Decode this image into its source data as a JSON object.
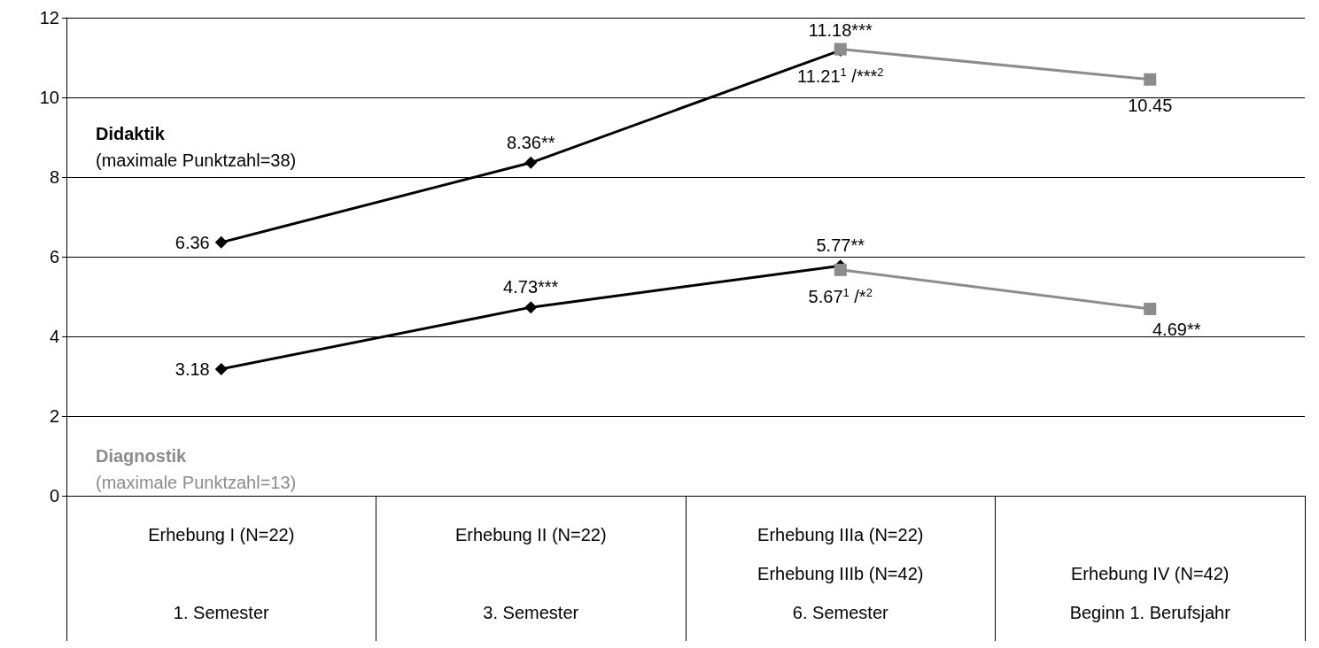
{
  "chart_data": {
    "type": "line",
    "categories": [
      "Erhebung I (N=22)\n\n1. Semester",
      "Erhebung II (N=22)\n\n3. Semester",
      "Erhebung IIIa (N=22)\nErhebung IIIb (N=42)\n6. Semester",
      "\nErhebung IV (N=42)\nBeginn 1. Berufsjahr"
    ],
    "series": [
      {
        "color": "#000000",
        "marker": "diamond",
        "values": [
          6.36,
          8.36,
          11.18,
          null
        ],
        "value_labels": [
          "6.36",
          "8.36**",
          "11.18***",
          null
        ]
      },
      {
        "color": "#8c8c8c",
        "marker": "square",
        "values": [
          null,
          null,
          11.21,
          10.45
        ],
        "value_labels": [
          null,
          null,
          "11.21$^{1}$ /***$^{2}$",
          "10.45"
        ]
      },
      {
        "color": "#000000",
        "marker": "diamond",
        "values": [
          3.18,
          4.73,
          5.77,
          null
        ],
        "value_labels": [
          "3.18",
          "4.73***",
          "5.77**",
          null
        ]
      },
      {
        "color": "#8c8c8c",
        "marker": "square",
        "values": [
          null,
          null,
          5.67,
          4.69
        ],
        "value_labels": [
          null,
          null,
          "5.67$^{1}$ /*$^{2}$",
          "4.69**"
        ]
      }
    ],
    "annotations": [
      "Didaktik\n(maximale Punktzahl=38)",
      "Diagnostik\n(maximale Punktzahl=13)"
    ],
    "ylim": [
      0,
      12
    ],
    "yticks": [
      0,
      2,
      4,
      6,
      8,
      10,
      12
    ],
    "grid": "y",
    "line_style": "solid"
  }
}
